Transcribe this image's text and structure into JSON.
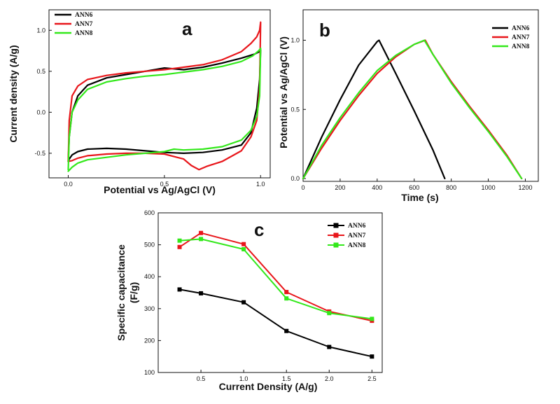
{
  "colors": {
    "ANN6": "#000000",
    "ANN7": "#e8161b",
    "ANN8": "#33e81b"
  },
  "chart_data": [
    {
      "id": "a",
      "type": "line",
      "panel_label": "a",
      "xlabel": "Potential vs Ag/AgCl (V)",
      "ylabel": "Current density (A/g)",
      "xlim": [
        -0.1,
        1.05
      ],
      "ylim": [
        -0.8,
        1.25
      ],
      "xticks": [
        0.0,
        0.5,
        1.0
      ],
      "xtick_labels": [
        "0.0",
        "0.5",
        "1.0"
      ],
      "yticks": [
        -0.5,
        0.0,
        0.5,
        1.0
      ],
      "ytick_labels": [
        "-0.5",
        "0.0",
        "0.5",
        "1.0"
      ],
      "legend": "top-left",
      "series": [
        {
          "name": "ANN6",
          "x": [
            0.0,
            0.005,
            0.02,
            0.05,
            0.1,
            0.2,
            0.3,
            0.4,
            0.5,
            0.6,
            0.7,
            0.8,
            0.9,
            0.97,
            0.995,
            1.0,
            0.995,
            0.98,
            0.95,
            0.9,
            0.8,
            0.7,
            0.6,
            0.5,
            0.4,
            0.3,
            0.2,
            0.1,
            0.05,
            0.02,
            0.005,
            0.0
          ],
          "y": [
            -0.6,
            -0.3,
            0.0,
            0.2,
            0.33,
            0.42,
            0.46,
            0.5,
            0.54,
            0.52,
            0.55,
            0.6,
            0.66,
            0.71,
            0.74,
            0.76,
            0.4,
            0.05,
            -0.25,
            -0.4,
            -0.46,
            -0.49,
            -0.5,
            -0.49,
            -0.47,
            -0.45,
            -0.44,
            -0.45,
            -0.48,
            -0.52,
            -0.57,
            -0.6
          ]
        },
        {
          "name": "ANN7",
          "x": [
            0.0,
            0.005,
            0.02,
            0.05,
            0.1,
            0.2,
            0.3,
            0.4,
            0.5,
            0.6,
            0.7,
            0.8,
            0.9,
            0.95,
            0.98,
            0.995,
            1.0,
            0.995,
            0.98,
            0.95,
            0.9,
            0.8,
            0.72,
            0.68,
            0.64,
            0.6,
            0.5,
            0.4,
            0.3,
            0.2,
            0.1,
            0.05,
            0.02,
            0.0
          ],
          "y": [
            -0.6,
            -0.1,
            0.2,
            0.32,
            0.4,
            0.45,
            0.48,
            0.5,
            0.52,
            0.55,
            0.58,
            0.64,
            0.74,
            0.84,
            0.92,
            1.0,
            1.1,
            0.3,
            -0.1,
            -0.3,
            -0.47,
            -0.6,
            -0.66,
            -0.7,
            -0.65,
            -0.57,
            -0.51,
            -0.5,
            -0.5,
            -0.51,
            -0.53,
            -0.56,
            -0.59,
            -0.6
          ]
        },
        {
          "name": "ANN8",
          "x": [
            0.0,
            0.005,
            0.02,
            0.05,
            0.1,
            0.2,
            0.3,
            0.4,
            0.5,
            0.6,
            0.7,
            0.8,
            0.9,
            0.96,
            0.99,
            1.0,
            0.995,
            0.98,
            0.95,
            0.9,
            0.8,
            0.7,
            0.6,
            0.55,
            0.5,
            0.4,
            0.3,
            0.2,
            0.1,
            0.05,
            0.02,
            0.0
          ],
          "y": [
            -0.7,
            -0.3,
            0.0,
            0.15,
            0.28,
            0.37,
            0.41,
            0.44,
            0.46,
            0.49,
            0.52,
            0.56,
            0.62,
            0.69,
            0.75,
            0.78,
            0.2,
            -0.05,
            -0.22,
            -0.34,
            -0.42,
            -0.45,
            -0.46,
            -0.45,
            -0.48,
            -0.5,
            -0.52,
            -0.55,
            -0.58,
            -0.62,
            -0.67,
            -0.72
          ]
        }
      ]
    },
    {
      "id": "b",
      "type": "line",
      "panel_label": "b",
      "xlabel": "Time (s)",
      "ylabel": "Potential vs Ag/AgCl (V)",
      "xlim": [
        0,
        1270
      ],
      "ylim": [
        -0.02,
        1.22
      ],
      "xticks": [
        0,
        200,
        400,
        600,
        800,
        1000,
        1200
      ],
      "xtick_labels": [
        "0",
        "200",
        "400",
        "600",
        "800",
        "1000",
        "1200"
      ],
      "yticks": [
        0.0,
        0.5,
        1.0
      ],
      "ytick_labels": [
        "0.0",
        "0.5",
        "1.0"
      ],
      "legend": "top-right",
      "series": [
        {
          "name": "ANN6",
          "x": [
            0,
            100,
            200,
            300,
            400,
            410,
            500,
            600,
            700,
            765
          ],
          "y": [
            0.0,
            0.3,
            0.57,
            0.82,
            0.99,
            1.0,
            0.76,
            0.49,
            0.21,
            0.0
          ]
        },
        {
          "name": "ANN7",
          "x": [
            0,
            100,
            200,
            300,
            400,
            500,
            600,
            660,
            700,
            800,
            900,
            1000,
            1100,
            1180
          ],
          "y": [
            0.0,
            0.22,
            0.42,
            0.6,
            0.76,
            0.88,
            0.97,
            1.0,
            0.9,
            0.7,
            0.52,
            0.35,
            0.17,
            0.0
          ]
        },
        {
          "name": "ANN8",
          "x": [
            0,
            100,
            200,
            300,
            400,
            500,
            600,
            655,
            700,
            800,
            900,
            1000,
            1100,
            1180
          ],
          "y": [
            0.0,
            0.24,
            0.44,
            0.62,
            0.78,
            0.89,
            0.97,
            1.0,
            0.9,
            0.69,
            0.51,
            0.34,
            0.16,
            0.0
          ]
        }
      ]
    },
    {
      "id": "c",
      "type": "line",
      "panel_label": "c",
      "xlabel": "Current Density (A/g)",
      "ylabel_lines": [
        "Specific capacitance",
        "(F/g)"
      ],
      "xlim": [
        0.0,
        2.62
      ],
      "ylim": [
        100,
        600
      ],
      "xticks": [
        0.5,
        1.0,
        1.5,
        2.0,
        2.5
      ],
      "xtick_labels": [
        "0.5",
        "1.0",
        "1.5",
        "2.0",
        "2.5"
      ],
      "yticks": [
        100,
        200,
        300,
        400,
        500,
        600
      ],
      "ytick_labels": [
        "100",
        "200",
        "300",
        "400",
        "500",
        "600"
      ],
      "legend": "top-right",
      "series": [
        {
          "name": "ANN6",
          "x": [
            0.25,
            0.5,
            1.0,
            1.5,
            2.0,
            2.5
          ],
          "y": [
            360,
            348,
            320,
            230,
            180,
            150
          ]
        },
        {
          "name": "ANN7",
          "x": [
            0.25,
            0.5,
            1.0,
            1.5,
            2.0,
            2.5
          ],
          "y": [
            493,
            537,
            502,
            352,
            291,
            262
          ]
        },
        {
          "name": "ANN8",
          "x": [
            0.25,
            0.5,
            1.0,
            1.5,
            2.0,
            2.5
          ],
          "y": [
            513,
            518,
            486,
            332,
            286,
            268
          ]
        }
      ]
    }
  ]
}
